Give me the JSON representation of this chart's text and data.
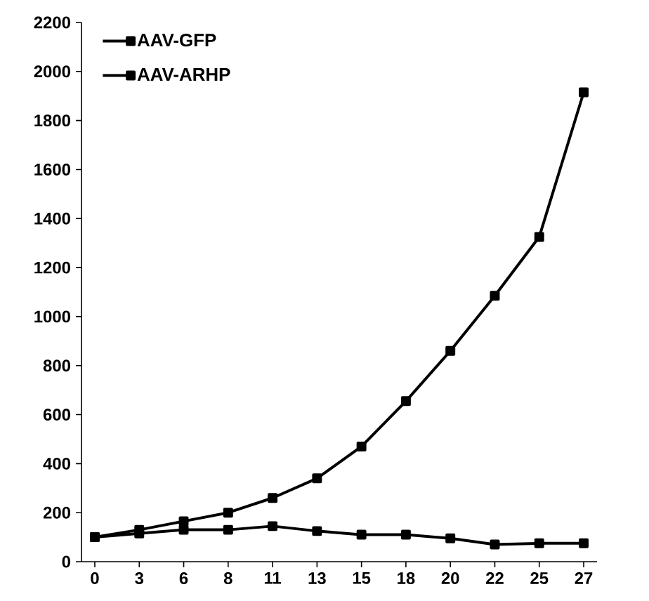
{
  "chart_data": {
    "type": "line",
    "categories": [
      "0",
      "3",
      "6",
      "8",
      "11",
      "13",
      "15",
      "18",
      "20",
      "22",
      "25",
      "27"
    ],
    "series": [
      {
        "name": "AAV-GFP",
        "color": "#000000",
        "values": [
          100,
          130,
          165,
          200,
          260,
          340,
          470,
          655,
          860,
          1085,
          1325,
          1915
        ]
      },
      {
        "name": "AAV-ARHP",
        "color": "#000000",
        "values": [
          100,
          115,
          130,
          130,
          145,
          125,
          110,
          110,
          95,
          70,
          75,
          75
        ]
      }
    ],
    "ylim": [
      0,
      2200
    ],
    "yticks": [
      0,
      200,
      400,
      600,
      800,
      1000,
      1200,
      1400,
      1600,
      1800,
      2000,
      2200
    ],
    "grid": false,
    "legend": "top left",
    "marker": "square",
    "line_style": "solid"
  }
}
